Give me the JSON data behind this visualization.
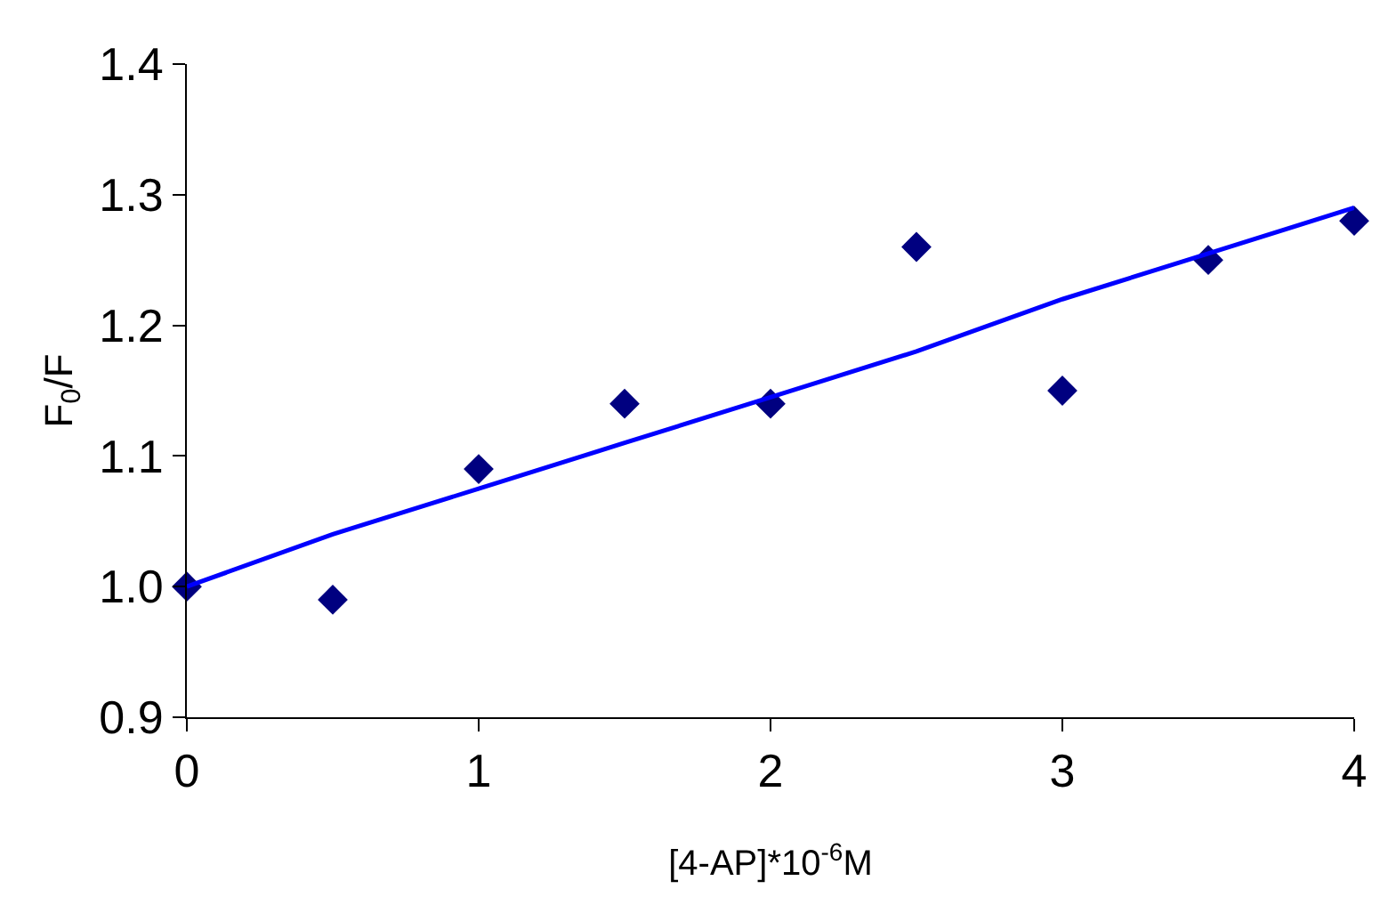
{
  "chart_data": {
    "type": "scatter",
    "xlabel": "[4-AP]*10$^{-6}$M",
    "ylabel": "F$_{0}$/F",
    "x": [
      0,
      0.5,
      1,
      1.5,
      2,
      2.5,
      3,
      3.5,
      4
    ],
    "series": [
      {
        "color": "#000080",
        "marker": "diamond",
        "values": [
          1.0,
          0.99,
          1.09,
          1.14,
          1.14,
          1.26,
          1.15,
          1.25,
          1.28
        ]
      },
      {
        "type": "line",
        "color": "#0000ff",
        "marker": "none",
        "line_style": "solid",
        "values": [
          1.0,
          1.04,
          1.075,
          1.11,
          1.145,
          1.18,
          1.22,
          1.255,
          1.29
        ]
      }
    ],
    "xlim": [
      0,
      4
    ],
    "xticks": [
      0,
      1,
      2,
      3,
      4
    ],
    "ylim": [
      0.9,
      1.4
    ],
    "yticks": [
      {
        "value": 0.9,
        "label": "0.9"
      },
      {
        "value": 1.0,
        "label": "1.0"
      },
      {
        "value": 1.1,
        "label": "1.1"
      },
      {
        "value": 1.2,
        "label": "1.2"
      },
      {
        "value": 1.3,
        "label": "1.3"
      },
      {
        "value": 1.4,
        "label": "1.4"
      }
    ]
  }
}
